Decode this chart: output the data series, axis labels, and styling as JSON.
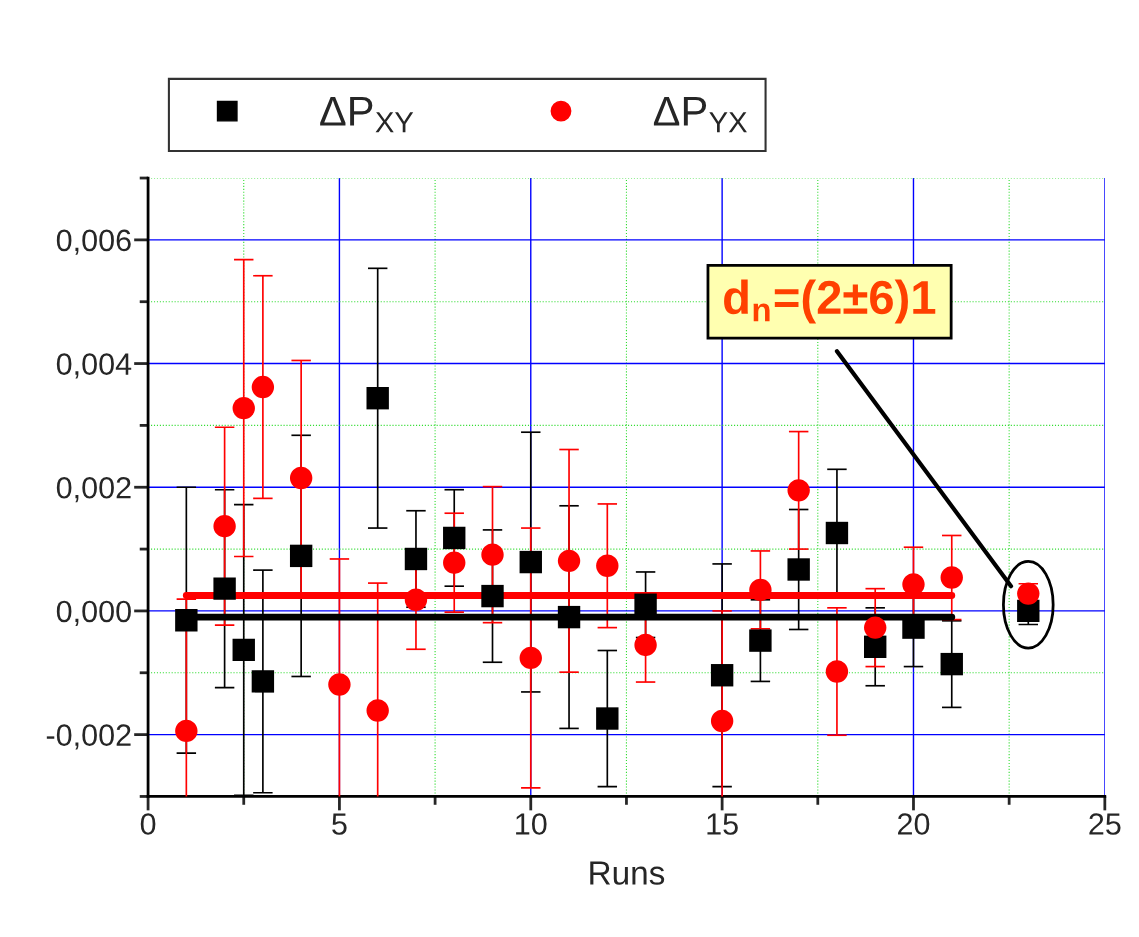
{
  "chart_data": {
    "type": "scatter",
    "xlabel": "Runs",
    "xlim": [
      0,
      25
    ],
    "xticks": [
      0,
      {
        "value": 2.5,
        "label": null
      },
      5,
      {
        "value": 7.5,
        "label": null
      },
      10,
      {
        "value": 12.5,
        "label": null
      },
      15,
      {
        "value": 17.5,
        "label": null
      },
      20,
      {
        "value": 22.5,
        "label": null
      },
      25
    ],
    "ylim": [
      -0.003,
      0.007
    ],
    "yticks": [
      {
        "value": -0.003,
        "label": null
      },
      {
        "value": -0.002,
        "label": "-0,002"
      },
      {
        "value": -0.001,
        "label": null
      },
      {
        "value": 0,
        "label": "0,000"
      },
      {
        "value": 0.001,
        "label": null
      },
      {
        "value": 0.002,
        "label": "0,002"
      },
      {
        "value": 0.003,
        "label": null
      },
      {
        "value": 0.004,
        "label": "0,004"
      },
      {
        "value": 0.005,
        "label": null
      },
      {
        "value": 0.006,
        "label": "0,006"
      },
      {
        "value": 0.007,
        "label": null
      }
    ],
    "grid": true,
    "legend": "top left",
    "series": [
      {
        "name": "ΔP$_{XY}$",
        "marker": "square",
        "color": "#000000",
        "x": [
          1,
          2,
          2.5,
          3,
          4,
          6,
          7,
          8,
          9,
          10,
          11,
          12,
          13,
          15,
          16,
          17,
          18,
          19,
          20,
          21,
          23
        ],
        "values": [
          -0.00015,
          0.00036,
          -0.00063,
          -0.00114,
          0.00089,
          0.00344,
          0.00084,
          0.00118,
          0.00024,
          0.00079,
          -0.0001,
          -0.00174,
          0.0001,
          -0.00104,
          -0.00048,
          0.00067,
          0.00126,
          -0.00058,
          -0.00027,
          -0.00086,
          0.0
        ],
        "errors": [
          0.00215,
          0.0016,
          0.00235,
          0.0018,
          0.00195,
          0.0021,
          0.00078,
          0.00078,
          0.00107,
          0.0021,
          0.0018,
          0.0011,
          0.00053,
          0.0018,
          0.00066,
          0.00097,
          0.00103,
          0.00063,
          0.00063,
          0.0007,
          0.00022
        ]
      },
      {
        "name": "ΔP$_{YX}$",
        "marker": "circle",
        "color": "#ff0000",
        "x": [
          1,
          2,
          2.5,
          3,
          4,
          5,
          6,
          7,
          8,
          9,
          10,
          11,
          12,
          13,
          15,
          16,
          17,
          18,
          19,
          20,
          21,
          23
        ],
        "values": [
          -0.00194,
          0.00137,
          0.00328,
          0.00362,
          0.00215,
          -0.00119,
          -0.00161,
          0.00018,
          0.00078,
          0.00091,
          -0.00076,
          0.00081,
          0.00073,
          -0.00055,
          -0.00178,
          0.00034,
          0.00195,
          -0.00098,
          -0.00027,
          0.00043,
          0.00054,
          0.00028
        ],
        "errors": [
          0.00213,
          0.0016,
          0.0024,
          0.0018,
          0.0019,
          0.00203,
          0.00206,
          0.0008,
          0.0008,
          0.0011,
          0.0021,
          0.0018,
          0.001,
          0.0006,
          0.00178,
          0.00063,
          0.00095,
          0.00103,
          0.00063,
          0.0006,
          0.00068,
          0.00016
        ]
      },
      {
        "type": "line",
        "line_style": "solid",
        "color": "#ff0000",
        "x": [
          1,
          21
        ],
        "values": [
          0.00025,
          0.00025
        ]
      },
      {
        "type": "line",
        "line_style": "solid",
        "color": "#000000",
        "x": [
          1,
          21
        ],
        "values": [
          -0.0001,
          -0.0001
        ]
      }
    ],
    "annotations": [
      "d$_{n}$=(2±6)1"
    ]
  }
}
